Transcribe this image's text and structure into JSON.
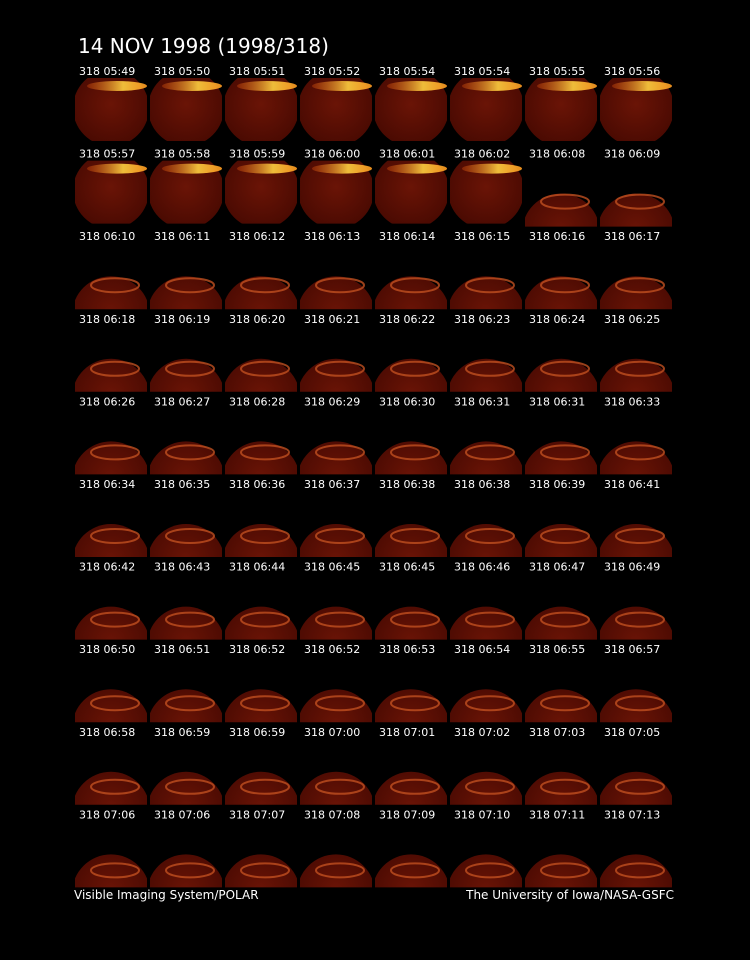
{
  "header": {
    "title": "14 NOV 1998  (1998/318)"
  },
  "frames": [
    [
      "318 05:49",
      "318 05:50",
      "318 05:51",
      "318 05:52",
      "318 05:54",
      "318 05:54",
      "318 05:55",
      "318 05:56"
    ],
    [
      "318 05:57",
      "318 05:58",
      "318 05:59",
      "318 06:00",
      "318 06:01",
      "318 06:02",
      "318 06:08",
      "318 06:09"
    ],
    [
      "318 06:10",
      "318 06:11",
      "318 06:12",
      "318 06:13",
      "318 06:14",
      "318 06:15",
      "318 06:16",
      "318 06:17"
    ],
    [
      "318 06:18",
      "318 06:19",
      "318 06:20",
      "318 06:21",
      "318 06:22",
      "318 06:23",
      "318 06:24",
      "318 06:25"
    ],
    [
      "318 06:26",
      "318 06:27",
      "318 06:28",
      "318 06:29",
      "318 06:30",
      "318 06:31",
      "318 06:31",
      "318 06:33"
    ],
    [
      "318 06:34",
      "318 06:35",
      "318 06:36",
      "318 06:37",
      "318 06:38",
      "318 06:38",
      "318 06:39",
      "318 06:41"
    ],
    [
      "318 06:42",
      "318 06:43",
      "318 06:44",
      "318 06:45",
      "318 06:45",
      "318 06:46",
      "318 06:47",
      "318 06:49"
    ],
    [
      "318 06:50",
      "318 06:51",
      "318 06:52",
      "318 06:52",
      "318 06:53",
      "318 06:54",
      "318 06:55",
      "318 06:57"
    ],
    [
      "318 06:58",
      "318 06:59",
      "318 06:59",
      "318 07:00",
      "318 07:01",
      "318 07:02",
      "318 07:03",
      "318 07:05"
    ],
    [
      "318 07:06",
      "318 07:06",
      "318 07:07",
      "318 07:08",
      "318 07:09",
      "318 07:10",
      "318 07:11",
      "318 07:13"
    ]
  ],
  "footer": {
    "left": "Visible Imaging System/POLAR",
    "right": "The University of Iowa/NASA-GSFC"
  }
}
